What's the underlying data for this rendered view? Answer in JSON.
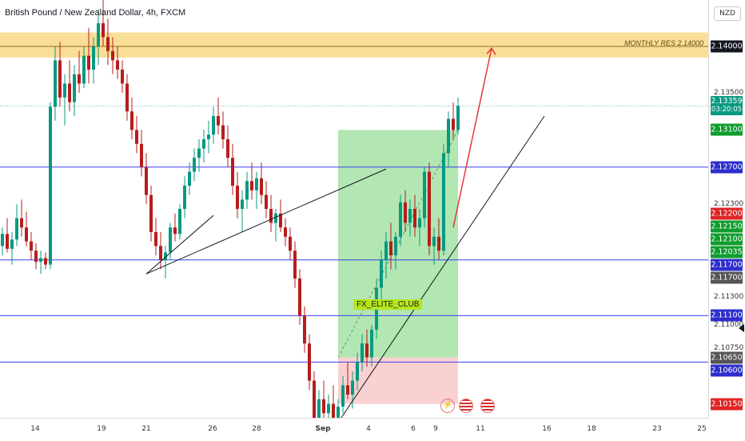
{
  "header": {
    "title": "British Pound / New Zealand Dollar, 4h, FXCM",
    "currency": "NZD"
  },
  "resistance_zone_label": "MONTHLY RES 2.14000",
  "watermark": "FX_ELITE_CLUB",
  "timer": "03:20:05",
  "colors": {
    "up": "#089981",
    "down": "#b71c1c",
    "level_line": "#3d3df2",
    "zone": "#f5c342",
    "profit_zone": "#7ed67e",
    "loss_zone": "#f7c6c6",
    "projection": "#e53935"
  },
  "icons": [
    "bolt-icon",
    "uk-flag-icon",
    "uk-flag-icon"
  ],
  "chart_data": {
    "type": "candlestick",
    "title": "British Pound / New Zealand Dollar, 4h, FXCM",
    "ylim": [
      2.1,
      2.145
    ],
    "x_ticks": [
      "14",
      "19",
      "21",
      "26",
      "28",
      "Sep",
      "4",
      "6",
      "9",
      "11",
      "16",
      "18",
      "23",
      "25"
    ],
    "y_ticks": [
      "2.13500",
      "2.12300",
      "2.11300",
      "2.11000",
      "2.10750"
    ],
    "axis_badges": [
      {
        "label": "2.14000",
        "value": 2.14,
        "color": "#131722"
      },
      {
        "label": "2.13359",
        "value": 2.13359,
        "color": "#089981"
      },
      {
        "label": "2.13100",
        "value": 2.131,
        "color": "#0f9d2f"
      },
      {
        "label": "2.12700",
        "value": 2.127,
        "color": "#2e2ecc"
      },
      {
        "label": "2.12200",
        "value": 2.122,
        "color": "#e02424"
      },
      {
        "label": "2.12150",
        "value": 2.1215,
        "color": "#0f9d2f"
      },
      {
        "label": "2.12100",
        "value": 2.121,
        "color": "#0f9d2f"
      },
      {
        "label": "2.12035",
        "value": 2.12035,
        "color": "#0f9d2f"
      },
      {
        "label": "2.11700",
        "value": 2.117,
        "color": "#2e2ecc"
      },
      {
        "label": "2.11700",
        "value": 2.117,
        "color": "#555555"
      },
      {
        "label": "2.11100",
        "value": 2.111,
        "color": "#2e2ecc"
      },
      {
        "label": "2.10650",
        "value": 2.1065,
        "color": "#555555"
      },
      {
        "label": "2.10600",
        "value": 2.106,
        "color": "#2e2ecc"
      },
      {
        "label": "2.10150",
        "value": 2.1015,
        "color": "#e02424"
      }
    ],
    "horizontal_levels": [
      2.127,
      2.117,
      2.111,
      2.106
    ],
    "resistance_zone": [
      2.1388,
      2.1415
    ],
    "current_price": 2.13359,
    "position": {
      "entry": 2.1065,
      "target": 2.131,
      "stop": 2.1015
    },
    "ohlc": [
      [
        2.1185,
        2.1205,
        2.1175,
        2.1198
      ],
      [
        2.1198,
        2.1215,
        2.1178,
        2.1182
      ],
      [
        2.1182,
        2.12,
        2.1165,
        2.1192
      ],
      [
        2.1192,
        2.123,
        2.1185,
        2.1215
      ],
      [
        2.1215,
        2.1235,
        2.1195,
        2.1205
      ],
      [
        2.1205,
        2.1222,
        2.1185,
        2.119
      ],
      [
        2.119,
        2.12,
        2.117,
        2.118
      ],
      [
        2.118,
        2.1188,
        2.116,
        2.1168
      ],
      [
        2.1168,
        2.118,
        2.1155,
        2.1172
      ],
      [
        2.1172,
        2.1178,
        2.116,
        2.1165
      ],
      [
        2.1165,
        2.134,
        2.116,
        2.1335
      ],
      [
        2.1335,
        2.14,
        2.132,
        2.1385
      ],
      [
        2.1385,
        2.1405,
        2.1335,
        2.1345
      ],
      [
        2.1345,
        2.137,
        2.1315,
        2.136
      ],
      [
        2.136,
        2.1385,
        2.133,
        2.134
      ],
      [
        2.134,
        2.138,
        2.1325,
        2.137
      ],
      [
        2.137,
        2.1395,
        2.135,
        2.136
      ],
      [
        2.136,
        2.14,
        2.1355,
        2.139
      ],
      [
        2.139,
        2.142,
        2.136,
        2.1375
      ],
      [
        2.1375,
        2.141,
        2.136,
        2.14
      ],
      [
        2.14,
        2.144,
        2.138,
        2.1425
      ],
      [
        2.1425,
        2.145,
        2.14,
        2.141
      ],
      [
        2.141,
        2.143,
        2.138,
        2.1395
      ],
      [
        2.1395,
        2.141,
        2.137,
        2.1385
      ],
      [
        2.1385,
        2.14,
        2.1365,
        2.1375
      ],
      [
        2.1375,
        2.1385,
        2.135,
        2.136
      ],
      [
        2.136,
        2.137,
        2.132,
        2.133
      ],
      [
        2.133,
        2.1345,
        2.13,
        2.131
      ],
      [
        2.131,
        2.1325,
        2.1285,
        2.1295
      ],
      [
        2.1295,
        2.131,
        2.126,
        2.127
      ],
      [
        2.127,
        2.1285,
        2.123,
        2.124
      ],
      [
        2.124,
        2.125,
        2.119,
        2.12
      ],
      [
        2.12,
        2.1215,
        2.1175,
        2.1185
      ],
      [
        2.1185,
        2.12,
        2.116,
        2.117
      ],
      [
        2.117,
        2.1185,
        2.115,
        2.1178
      ],
      [
        2.1178,
        2.121,
        2.117,
        2.1205
      ],
      [
        2.1205,
        2.122,
        2.119,
        2.1198
      ],
      [
        2.1198,
        2.123,
        2.1192,
        2.1225
      ],
      [
        2.1225,
        2.126,
        2.1215,
        2.125
      ],
      [
        2.125,
        2.1275,
        2.124,
        2.1265
      ],
      [
        2.1265,
        2.129,
        2.1255,
        2.128
      ],
      [
        2.128,
        2.13,
        2.1265,
        2.129
      ],
      [
        2.129,
        2.131,
        2.1275,
        2.13
      ],
      [
        2.13,
        2.132,
        2.1285,
        2.1305
      ],
      [
        2.1305,
        2.1335,
        2.1295,
        2.1325
      ],
      [
        2.1325,
        2.1345,
        2.1305,
        2.1315
      ],
      [
        2.1315,
        2.133,
        2.129,
        2.13
      ],
      [
        2.13,
        2.1315,
        2.127,
        2.128
      ],
      [
        2.128,
        2.1295,
        2.124,
        2.125
      ],
      [
        2.125,
        2.1265,
        2.1215,
        2.1225
      ],
      [
        2.1225,
        2.1245,
        2.12,
        2.1235
      ],
      [
        2.1235,
        2.1265,
        2.1225,
        2.1255
      ],
      [
        2.1255,
        2.1275,
        2.1235,
        2.1245
      ],
      [
        2.1245,
        2.1265,
        2.1225,
        2.1258
      ],
      [
        2.1258,
        2.1275,
        2.123,
        2.124
      ],
      [
        2.124,
        2.1255,
        2.1215,
        2.1225
      ],
      [
        2.1225,
        2.124,
        2.12,
        2.121
      ],
      [
        2.121,
        2.1225,
        2.119,
        2.122
      ],
      [
        2.122,
        2.1235,
        2.12,
        2.1205
      ],
      [
        2.1205,
        2.1215,
        2.1185,
        2.1195
      ],
      [
        2.1195,
        2.1205,
        2.117,
        2.118
      ],
      [
        2.118,
        2.119,
        2.114,
        2.115
      ],
      [
        2.115,
        2.116,
        2.11,
        2.111
      ],
      [
        2.111,
        2.112,
        2.107,
        2.108
      ],
      [
        2.108,
        2.109,
        2.103,
        2.104
      ],
      [
        2.104,
        2.105,
        2.099,
        2.1
      ],
      [
        2.1,
        2.103,
        2.098,
        2.102
      ],
      [
        2.102,
        2.104,
        2.099,
        2.1005
      ],
      [
        2.1005,
        2.1025,
        2.0985,
        2.1015
      ],
      [
        2.1015,
        2.1035,
        2.0995,
        2.1
      ],
      [
        2.1,
        2.102,
        2.0985,
        2.1012
      ],
      [
        2.1012,
        2.1045,
        2.1005,
        2.1035
      ],
      [
        2.1035,
        2.106,
        2.102,
        2.1025
      ],
      [
        2.1025,
        2.105,
        2.101,
        2.104
      ],
      [
        2.104,
        2.107,
        2.103,
        2.106
      ],
      [
        2.106,
        2.109,
        2.105,
        2.108
      ],
      [
        2.108,
        2.1095,
        2.1055,
        2.1065
      ],
      [
        2.1065,
        2.11,
        2.1055,
        2.1095
      ],
      [
        2.1095,
        2.115,
        2.1085,
        2.114
      ],
      [
        2.114,
        2.118,
        2.1125,
        2.117
      ],
      [
        2.117,
        2.12,
        2.115,
        2.119
      ],
      [
        2.119,
        2.121,
        2.116,
        2.1175
      ],
      [
        2.1175,
        2.12,
        2.116,
        2.1195
      ],
      [
        2.1195,
        2.124,
        2.1185,
        2.1232
      ],
      [
        2.1232,
        2.1245,
        2.12,
        2.121
      ],
      [
        2.121,
        2.1235,
        2.1195,
        2.1225
      ],
      [
        2.1225,
        2.124,
        2.1195,
        2.1205
      ],
      [
        2.1205,
        2.1225,
        2.1185,
        2.1215
      ],
      [
        2.1215,
        2.127,
        2.1205,
        2.1265
      ],
      [
        2.1265,
        2.1275,
        2.1175,
        2.1185
      ],
      [
        2.1185,
        2.1205,
        2.1165,
        2.1195
      ],
      [
        2.1195,
        2.1215,
        2.117,
        2.118
      ],
      [
        2.118,
        2.1295,
        2.1175,
        2.1285
      ],
      [
        2.1285,
        2.133,
        2.127,
        2.1322
      ],
      [
        2.1322,
        2.134,
        2.13,
        2.131
      ],
      [
        2.131,
        2.1345,
        2.1305,
        2.1336
      ]
    ]
  }
}
